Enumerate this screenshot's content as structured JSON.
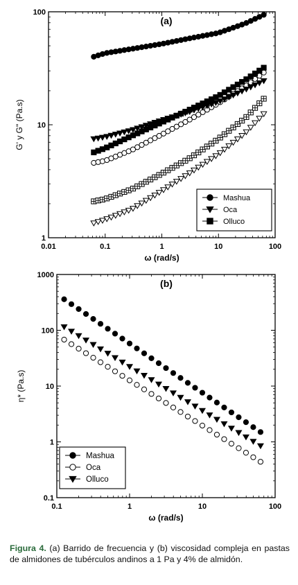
{
  "chart_data": [
    {
      "type": "scatter",
      "panel_label": "(a)",
      "xlabel": "ω (rad/s)",
      "ylabel": "G' y G\" (Pa.s)",
      "x_scale": "log",
      "y_scale": "log",
      "xlim": [
        0.01,
        100
      ],
      "ylim": [
        1,
        100
      ],
      "x_ticks": [
        "0.01",
        "0.1",
        "1",
        "10",
        "100"
      ],
      "y_ticks": [
        "1",
        "10",
        "100"
      ],
      "grid": false,
      "legend_position": "bottom-right",
      "legend": [
        {
          "label": "Mashua",
          "marker": "circle-filled"
        },
        {
          "label": "Oca",
          "marker": "triangle-down-filled"
        },
        {
          "label": "Olluco",
          "marker": "square-filled"
        }
      ],
      "series": [
        {
          "marker": "circle-filled",
          "x_range": [
            0.063,
            63
          ],
          "points": 40,
          "y_anchor_x": [
            0.063,
            0.1,
            0.3,
            1,
            3,
            10,
            30,
            63
          ],
          "y_anchor": [
            40,
            43,
            47,
            52,
            58,
            65,
            79,
            94
          ]
        },
        {
          "marker": "circle-open",
          "x_range": [
            0.063,
            63
          ],
          "points": 40,
          "y_anchor_x": [
            0.063,
            0.1,
            0.3,
            1,
            3,
            10,
            30,
            63
          ],
          "y_anchor": [
            4.6,
            4.8,
            6.0,
            8.2,
            11.0,
            15.5,
            22,
            29
          ]
        },
        {
          "marker": "triangle-down-filled",
          "x_range": [
            0.063,
            63
          ],
          "points": 40,
          "y_anchor_x": [
            0.063,
            0.1,
            0.3,
            1,
            3,
            10,
            30,
            63
          ],
          "y_anchor": [
            7.5,
            7.8,
            9.0,
            11.0,
            13.0,
            16.0,
            20.5,
            24.5
          ]
        },
        {
          "marker": "square-filled",
          "x_range": [
            0.063,
            63
          ],
          "points": 40,
          "y_anchor_x": [
            0.063,
            0.1,
            0.3,
            1,
            3,
            10,
            30,
            63
          ],
          "y_anchor": [
            5.7,
            6.2,
            8.0,
            10.5,
            13.5,
            18.0,
            25,
            32
          ]
        },
        {
          "marker": "square-crossed",
          "x_range": [
            0.063,
            63
          ],
          "points": 40,
          "y_anchor_x": [
            0.063,
            0.1,
            0.3,
            1,
            3,
            10,
            30,
            63
          ],
          "y_anchor": [
            2.1,
            2.2,
            2.7,
            3.7,
            5.0,
            7.5,
            11.5,
            17
          ]
        },
        {
          "marker": "triangle-down-open",
          "x_range": [
            0.063,
            63
          ],
          "points": 40,
          "y_anchor_x": [
            0.063,
            0.1,
            0.3,
            1,
            3,
            10,
            30,
            63
          ],
          "y_anchor": [
            1.35,
            1.45,
            1.8,
            2.6,
            3.7,
            5.5,
            8.5,
            12.5
          ]
        }
      ]
    },
    {
      "type": "scatter",
      "panel_label": "(b)",
      "xlabel": "ω (rad/s)",
      "ylabel": "η* (Pa.s)",
      "x_scale": "log",
      "y_scale": "log",
      "xlim": [
        0.1,
        100
      ],
      "ylim": [
        0.1,
        1000
      ],
      "x_ticks": [
        "0.1",
        "1",
        "10",
        "100"
      ],
      "y_ticks": [
        "0.1",
        "1",
        "10",
        "100",
        "1000"
      ],
      "grid": false,
      "legend_position": "bottom-left",
      "legend": [
        {
          "label": "Mashua",
          "marker": "circle-filled"
        },
        {
          "label": "Oca",
          "marker": "circle-open"
        },
        {
          "label": "Olluco",
          "marker": "triangle-down-filled"
        }
      ],
      "series": [
        {
          "marker": "circle-filled",
          "x_range": [
            0.126,
            63
          ],
          "points": 28,
          "y_anchor_x": [
            0.126,
            63
          ],
          "y_anchor": [
            360,
            1.5
          ]
        },
        {
          "marker": "triangle-down-filled",
          "x_range": [
            0.126,
            63
          ],
          "points": 28,
          "y_anchor_x": [
            0.126,
            63
          ],
          "y_anchor": [
            115,
            0.85
          ]
        },
        {
          "marker": "circle-open",
          "x_range": [
            0.126,
            63
          ],
          "points": 28,
          "y_anchor_x": [
            0.126,
            63
          ],
          "y_anchor": [
            68,
            0.44
          ]
        }
      ]
    }
  ],
  "caption": {
    "figure_label": "Figura 4.",
    "text": " (a) Barrido de frecuencia y (b) viscosidad compleja en pastas de almidones de tubérculos andinos a 1 Pa y 4% de almidón."
  }
}
